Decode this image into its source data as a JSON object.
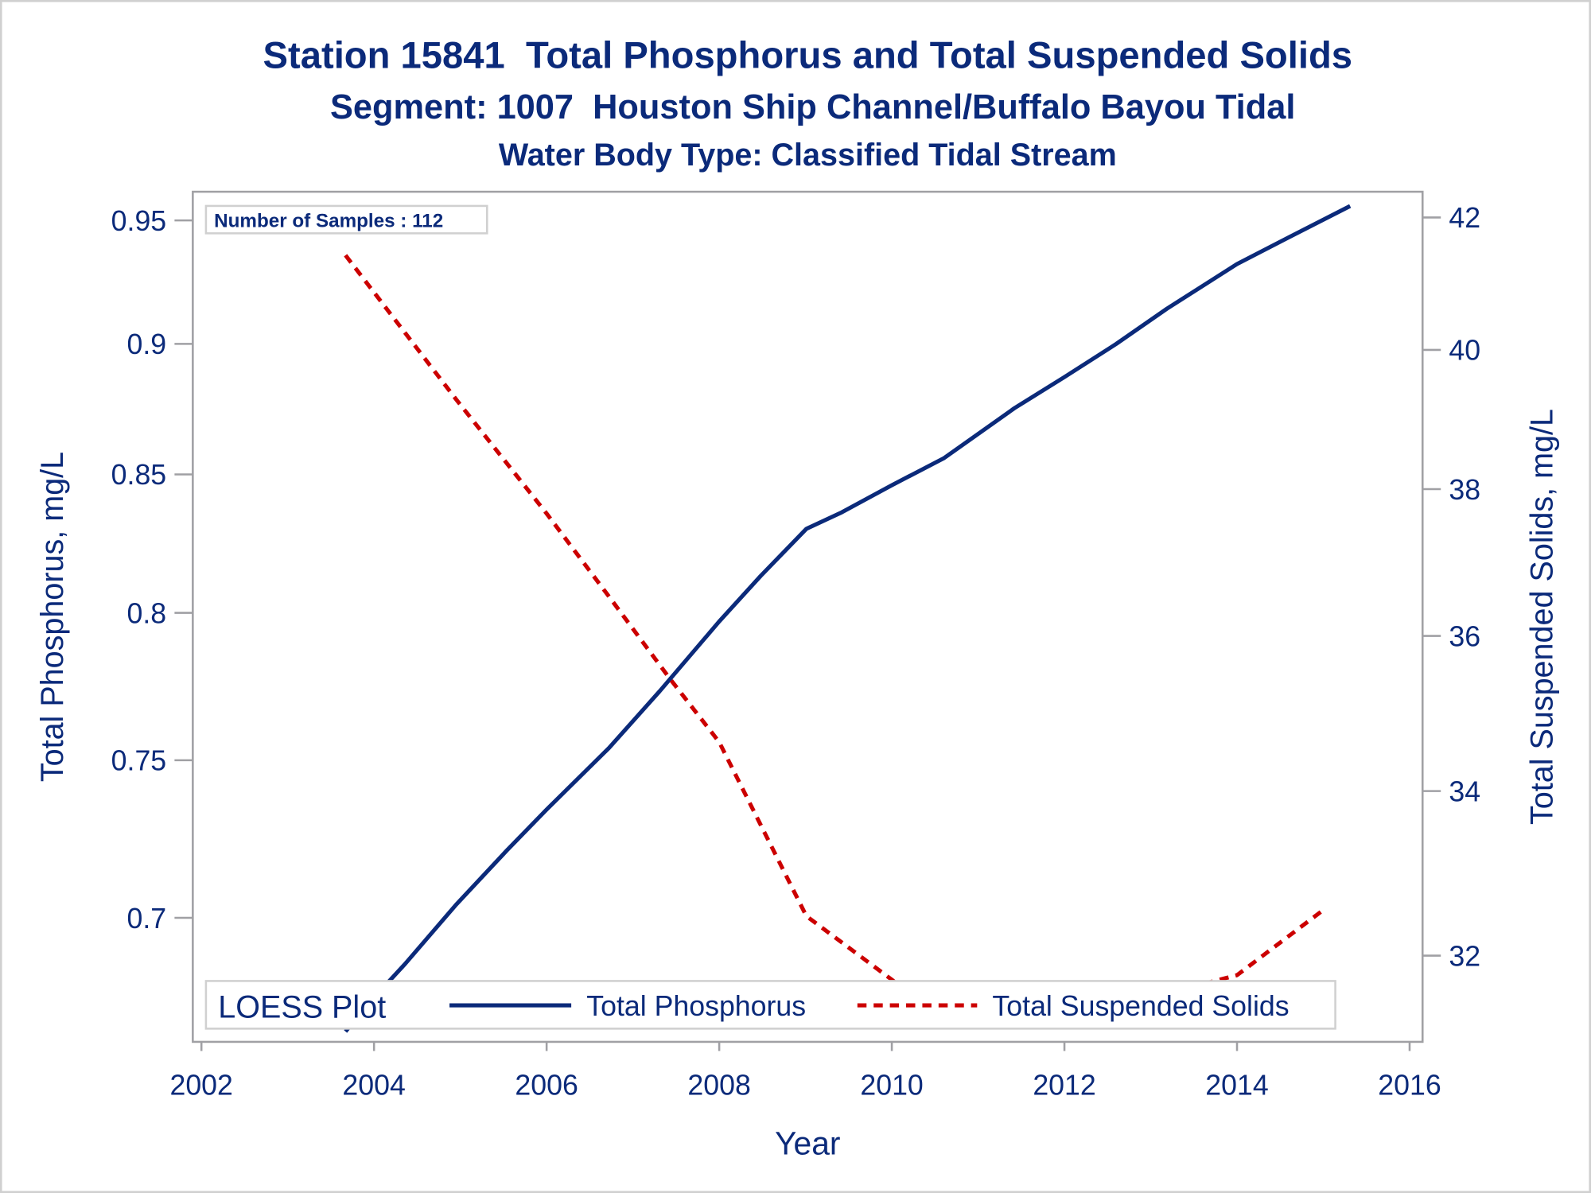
{
  "chart_data": {
    "type": "line",
    "title": "Station 15841  Total Phosphorus and Total Suspended Solids",
    "subtitle": "Segment: 1007  Houston Ship Channel/Buffalo Bayou Tidal",
    "subtitle2": "Water Body Type: Classified Tidal Stream",
    "xlabel": "Year",
    "ylabel": "Total Phosphorus, mg/L",
    "y2label": "Total Suspended Solids, mg/L",
    "xlim": [
      2001.9,
      2016.15
    ],
    "ylim": [
      0.663,
      0.962
    ],
    "y2lim": [
      31.0,
      42.4
    ],
    "yscale": "log",
    "y2scale": "log",
    "xticks": [
      "2002",
      "2004",
      "2006",
      "2008",
      "2010",
      "2012",
      "2014",
      "2016"
    ],
    "yticks": [
      "0.7",
      "0.75",
      "0.8",
      "0.85",
      "0.9",
      "0.95"
    ],
    "y2ticks": [
      "32",
      "34",
      "36",
      "38",
      "40",
      "42"
    ],
    "annotation": "Number of Samples : 112",
    "legend": {
      "title": "LOESS Plot",
      "position": "bottom-inside"
    },
    "grid": false,
    "series": [
      {
        "name": "Total Phosphorus",
        "axis": "left",
        "color": "#0b2a7a",
        "style": "solid",
        "x": [
          2003.67,
          2004.0,
          2004.36,
          2004.95,
          2005.54,
          2006.0,
          2006.72,
          2007.31,
          2008.0,
          2008.48,
          2009.01,
          2009.42,
          2010.0,
          2010.6,
          2011.42,
          2012.0,
          2012.6,
          2013.19,
          2014.0,
          2014.6,
          2015.31
        ],
        "y": [
          0.666,
          0.676,
          0.686,
          0.704,
          0.721,
          0.734,
          0.754,
          0.773,
          0.797,
          0.813,
          0.83,
          0.836,
          0.846,
          0.856,
          0.875,
          0.887,
          0.9,
          0.914,
          0.932,
          0.943,
          0.956
        ]
      },
      {
        "name": "Total Suspended Solids",
        "axis": "right",
        "color": "#cc0000",
        "style": "dashed",
        "x": [
          2003.67,
          2004.95,
          2006.0,
          2006.72,
          2007.42,
          2008.0,
          2009.01,
          2010.01,
          2010.6,
          2012.01,
          2013.07,
          2014.0,
          2015.01
        ],
        "y": [
          41.42,
          39.28,
          37.66,
          36.53,
          35.45,
          34.62,
          32.47,
          31.71,
          31.16,
          31.36,
          31.53,
          31.77,
          32.55
        ]
      }
    ]
  }
}
